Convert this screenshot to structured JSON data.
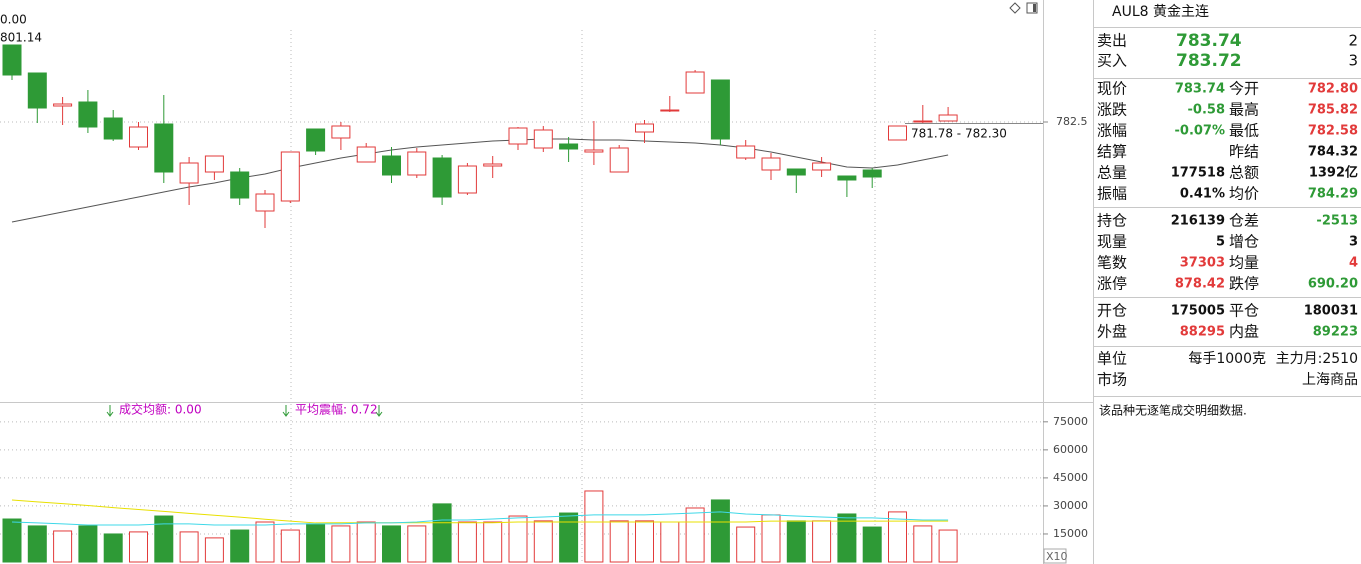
{
  "chart_data": [
    {
      "type": "candlestick",
      "annotations": [
        "0.00",
        "801.14",
        "781.78 - 782.30"
      ],
      "categories": [
        null,
        null,
        null,
        null,
        null,
        null,
        null,
        null,
        null,
        null,
        null,
        null,
        null,
        null,
        null,
        null,
        null,
        null,
        null,
        null,
        null,
        null,
        null,
        null,
        null,
        null,
        null,
        null,
        null,
        null,
        null,
        null,
        null,
        null,
        null,
        null,
        null,
        null
      ],
      "open": [
        797.9,
        792.3,
        785.7,
        786.5,
        783.3,
        777.5,
        782.1,
        770.3,
        772.5,
        772.5,
        764.7,
        766.7,
        781.1,
        779.3,
        774.5,
        775.7,
        771.9,
        775.3,
        768.3,
        773.7,
        778.1,
        777.3,
        778.1,
        776.5,
        772.5,
        780.5,
        784.7,
        788.3,
        790.9,
        775.3,
        772.9,
        773.1,
        772.9,
        771.7,
        772.9,
        778.9,
        782.5,
        782.7
      ],
      "high": [
        797.9,
        792.3,
        787.5,
        788.9,
        784.9,
        782.5,
        787.9,
        775.5,
        775.7,
        773.3,
        768.9,
        776.5,
        781.1,
        782.5,
        778.3,
        777.5,
        777.3,
        775.9,
        774.3,
        775.7,
        781.5,
        781.7,
        779.5,
        782.7,
        777.9,
        782.9,
        787.7,
        792.9,
        790.9,
        778.9,
        776.3,
        773.1,
        775.5,
        771.7,
        773.3,
        781.7,
        785.9,
        785.5
      ],
      "low": [
        790.9,
        782.3,
        781.9,
        780.3,
        778.7,
        776.9,
        770.3,
        765.9,
        770.9,
        765.9,
        761.3,
        766.3,
        775.9,
        776.9,
        774.5,
        770.3,
        771.3,
        765.9,
        767.9,
        771.3,
        776.9,
        776.5,
        774.5,
        773.9,
        772.5,
        778.3,
        784.5,
        788.3,
        777.9,
        774.9,
        770.9,
        768.3,
        771.5,
        767.5,
        769.3,
        778.9,
        782.3,
        782.7
      ],
      "close": [
        791.9,
        785.3,
        786.1,
        781.5,
        779.1,
        781.5,
        772.5,
        774.3,
        775.7,
        767.3,
        768.1,
        776.5,
        776.7,
        781.7,
        777.5,
        771.9,
        776.5,
        767.5,
        773.7,
        774.1,
        781.3,
        780.9,
        777.1,
        776.9,
        777.3,
        782.1,
        784.9,
        792.5,
        779.1,
        777.7,
        775.3,
        771.9,
        774.3,
        770.9,
        771.5,
        781.7,
        782.7,
        783.9
      ],
      "up_color": "#e23a3a",
      "down_color": "#2e9a36",
      "series": [
        {
          "color": "#555555",
          "values": [
            762.5,
            763.5,
            764.5,
            765.5,
            766.5,
            767.5,
            768.5,
            769.5,
            770.3,
            771.3,
            772.1,
            773.3,
            774.3,
            775.3,
            776.1,
            776.9,
            777.5,
            777.9,
            778.3,
            778.7,
            778.9,
            779.1,
            779.1,
            778.9,
            778.9,
            778.7,
            778.5,
            778.3,
            777.9,
            777.3,
            776.5,
            775.5,
            774.5,
            773.5,
            773.3,
            773.9,
            774.9,
            775.9
          ]
        }
      ],
      "ylim": [
        727.9,
        800.9
      ],
      "yticks": [
        782.5
      ],
      "grid": true
    },
    {
      "type": "bar",
      "annotations": [
        "成交均额: 0.00",
        "平均震幅: 0.72",
        "X10"
      ],
      "annotation_color": "#c000c0",
      "values": [
        23000,
        19300,
        16600,
        19300,
        15000,
        16100,
        24600,
        16100,
        12900,
        17100,
        21400,
        17100,
        20400,
        19300,
        21400,
        19300,
        19300,
        31100,
        21400,
        21400,
        24600,
        22000,
        26200,
        38000,
        22000,
        22000,
        21400,
        28900,
        33200,
        18700,
        25200,
        22000,
        22000,
        25700,
        18700,
        26800,
        19300,
        17100
      ],
      "series": [
        {
          "color": "#e8e000",
          "values": [
            33200,
            32200,
            31200,
            30200,
            29100,
            28100,
            27100,
            26000,
            25000,
            24000,
            22900,
            21900,
            20900,
            21000,
            21000,
            21000,
            21000,
            21000,
            21000,
            21000,
            21400,
            21400,
            21400,
            21400,
            21400,
            21400,
            21400,
            21400,
            21400,
            21400,
            21900,
            21900,
            21900,
            21900,
            21900,
            21900,
            21900,
            21900
          ]
        },
        {
          "color": "#3fd8e8",
          "values": [
            21400,
            20900,
            20400,
            19800,
            19800,
            19800,
            20400,
            20400,
            19800,
            19800,
            19800,
            20400,
            20400,
            20400,
            20900,
            20900,
            21400,
            22500,
            22500,
            23000,
            23600,
            24100,
            24600,
            25200,
            25200,
            25200,
            25700,
            26200,
            26800,
            25700,
            25200,
            24600,
            24100,
            23600,
            23600,
            23000,
            22500,
            22500
          ]
        }
      ],
      "ylim": [
        0,
        84000
      ],
      "yticks": [
        15000,
        30000,
        45000,
        60000,
        75000
      ],
      "grid": true
    }
  ],
  "panel": {
    "title": "AUL8 黄金主连",
    "quote_color": "#2e9a36",
    "quotes": [
      {
        "label": "卖出",
        "price": "783.74",
        "count": "2"
      },
      {
        "label": "买入",
        "price": "783.72",
        "count": "3"
      }
    ],
    "groups": [
      {
        "rows": [
          [
            "现价",
            "783.74",
            "今开",
            "782.80"
          ],
          [
            "涨跌",
            "-0.58",
            "最高",
            "785.82"
          ],
          [
            "涨幅",
            "-0.07%",
            "最低",
            "782.58"
          ],
          [
            "结算",
            null,
            "昨结",
            "784.32"
          ],
          [
            "总量",
            "177518",
            "总额",
            "1392亿"
          ],
          [
            "振幅",
            "0.41%",
            "均价",
            "784.29"
          ]
        ],
        "colors": [
          [
            "#2e9a36",
            "#e23a3a"
          ],
          [
            "#2e9a36",
            "#e23a3a"
          ],
          [
            "#2e9a36",
            "#e23a3a"
          ],
          [
            null,
            "#111111"
          ],
          [
            "#111111",
            "#111111"
          ],
          [
            "#111111",
            "#2e9a36"
          ]
        ]
      },
      {
        "rows": [
          [
            "持仓",
            "216139",
            "仓差",
            "-2513"
          ],
          [
            "现量",
            "5",
            "增仓",
            "3"
          ],
          [
            "笔数",
            "37303",
            "均量",
            "4"
          ],
          [
            "涨停",
            "878.42",
            "跌停",
            "690.20"
          ]
        ],
        "colors": [
          [
            "#111111",
            "#2e9a36"
          ],
          [
            "#111111",
            "#111111"
          ],
          [
            "#e23a3a",
            "#e23a3a"
          ],
          [
            "#e23a3a",
            "#2e9a36"
          ]
        ]
      },
      {
        "rows": [
          [
            "开仓",
            "175005",
            "平仓",
            "180031"
          ],
          [
            "外盘",
            "88295",
            "内盘",
            "89223"
          ]
        ],
        "colors": [
          [
            "#111111",
            "#111111"
          ],
          [
            "#e23a3a",
            "#2e9a36"
          ]
        ]
      }
    ],
    "info": [
      [
        "单位",
        "每手1000克",
        "主力月:2510"
      ],
      [
        "市场",
        "上海商品"
      ]
    ],
    "note": "该品种无逐笔成交明细数据."
  }
}
